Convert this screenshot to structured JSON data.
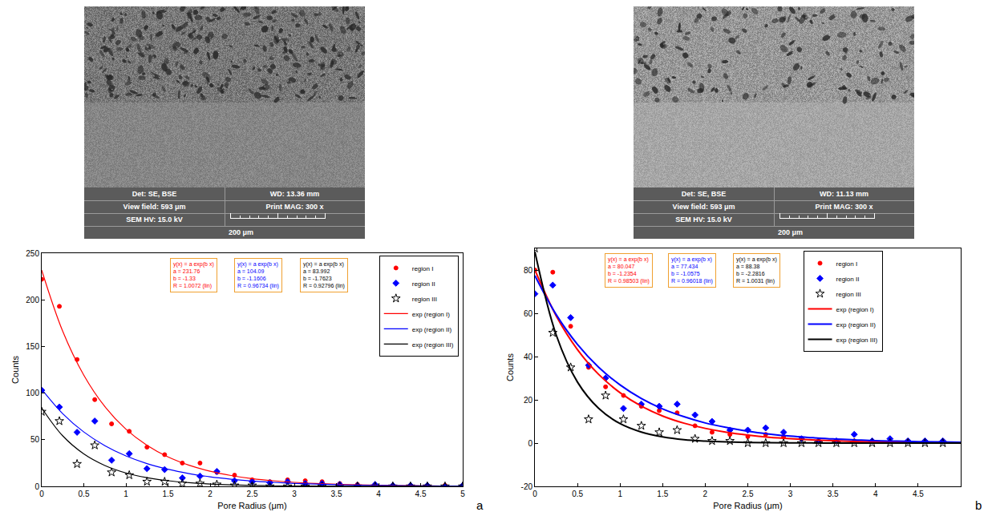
{
  "panel_labels": [
    "a",
    "b"
  ],
  "sem_images": [
    {
      "info": [
        [
          "Det: SE, BSE",
          "WD: 13.36 mm"
        ],
        [
          "View field: 593 μm",
          "Print MAG: 300 x"
        ],
        [
          "SEM HV: 15.0 kV"
        ]
      ],
      "scale_bar": "200 μm"
    },
    {
      "info": [
        [
          "Det: SE, BSE",
          "WD: 11.13 mm"
        ],
        [
          "View field: 593 μm",
          "Print MAG: 300 x"
        ],
        [
          "SEM HV: 15.0 kV"
        ]
      ],
      "scale_bar": "200 μm"
    }
  ],
  "chart_data": [
    {
      "type": "scatter",
      "x_label": "Pore Radius (μm)",
      "y_label": "Counts",
      "xlim": [
        0,
        5
      ],
      "xticks": [
        0,
        0.5,
        1,
        1.5,
        2,
        2.5,
        3,
        3.5,
        4,
        4.5,
        5
      ],
      "ylim": [
        0,
        250
      ],
      "yticks": [
        0,
        50,
        100,
        150,
        200,
        250
      ],
      "grid": false,
      "legend": "upper right",
      "annotations": [
        {
          "color": "#ff0000",
          "lines": [
            "y(x) = a exp(b x)",
            "a = 231.76",
            "b = -1.33",
            "R = 1.0072 (lin)"
          ]
        },
        {
          "color": "#0000ff",
          "lines": [
            "y(x) = a exp(b x)",
            "a = 104.09",
            "b = -1.1606",
            "R = 0.96734 (lin)"
          ]
        },
        {
          "color": "#000000",
          "lines": [
            "y(x) = a exp(b x)",
            "a = 83.992",
            "b = -1.7623",
            "R = 0.92796 (lin)"
          ]
        }
      ],
      "series": [
        {
          "name": "region I",
          "type": "scatter",
          "color": "#ff0000",
          "marker": "circle",
          "x": [
            0,
            0.21,
            0.42,
            0.63,
            0.83,
            1.04,
            1.25,
            1.46,
            1.67,
            1.88,
            2.08,
            2.29,
            2.5,
            2.71,
            2.92,
            3.13,
            3.33,
            3.54,
            3.75,
            3.96,
            4.17,
            4.38,
            4.58,
            4.79,
            5
          ],
          "values": [
            222,
            193,
            136,
            93,
            67,
            59,
            42,
            34,
            25,
            25,
            15,
            12,
            7,
            5,
            7,
            6,
            5,
            3,
            2,
            2,
            1,
            1,
            1,
            1,
            1
          ]
        },
        {
          "name": "region II",
          "type": "scatter",
          "color": "#0000ff",
          "marker": "diamond",
          "x": [
            0,
            0.21,
            0.42,
            0.63,
            0.83,
            1.04,
            1.25,
            1.46,
            1.67,
            1.88,
            2.08,
            2.29,
            2.5,
            2.71,
            2.92,
            3.13,
            3.33,
            3.54,
            3.75,
            3.96,
            4.17,
            4.38,
            4.58,
            4.79,
            5
          ],
          "values": [
            103,
            85,
            58,
            70,
            28,
            35,
            19,
            18,
            9,
            11,
            16,
            6,
            5,
            4,
            5,
            3,
            3,
            2,
            1,
            2,
            1,
            1,
            1,
            0,
            1
          ]
        },
        {
          "name": "region III",
          "type": "scatter",
          "color": "#000000",
          "marker": "star-open",
          "x": [
            0,
            0.21,
            0.42,
            0.63,
            0.83,
            1.04,
            1.25,
            1.46,
            1.67,
            1.88,
            2.08,
            2.29,
            2.5,
            2.71,
            2.92,
            3.13,
            3.33,
            3.54,
            3.75,
            3.96,
            4.17,
            4.38,
            4.58,
            4.79,
            5
          ],
          "values": [
            80,
            70,
            24,
            44,
            15,
            12,
            5,
            5,
            3,
            3,
            2,
            1,
            1,
            0,
            0,
            0,
            0,
            0,
            0,
            0,
            0,
            0,
            0,
            0,
            0
          ]
        },
        {
          "name": "exp (region I)",
          "type": "line",
          "color": "#ff0000",
          "line_style": "solid",
          "x": [
            0,
            0.25,
            0.5,
            0.75,
            1,
            1.25,
            1.5,
            1.75,
            2,
            2.25,
            2.5,
            2.75,
            3,
            3.25,
            3.5,
            3.75,
            4,
            4.25,
            4.5,
            4.75,
            5
          ],
          "values": [
            231.8,
            166.2,
            119.2,
            85.5,
            61.3,
            44.0,
            31.5,
            22.6,
            16.2,
            11.6,
            8.3,
            6.0,
            4.3,
            3.1,
            2.2,
            1.6,
            1.1,
            0.8,
            0.6,
            0.4,
            0.3
          ]
        },
        {
          "name": "exp (region II)",
          "type": "line",
          "color": "#0000ff",
          "line_style": "solid",
          "x": [
            0,
            0.25,
            0.5,
            0.75,
            1,
            1.25,
            1.5,
            1.75,
            2,
            2.25,
            2.5,
            2.75,
            3,
            3.25,
            3.5,
            3.75,
            4,
            4.25,
            4.5,
            4.75,
            5
          ],
          "values": [
            104.1,
            77.9,
            58.3,
            43.6,
            32.6,
            24.4,
            18.3,
            13.7,
            10.2,
            7.7,
            5.7,
            4.3,
            3.2,
            2.4,
            1.8,
            1.3,
            1.0,
            0.75,
            0.56,
            0.42,
            0.31
          ]
        },
        {
          "name": "exp (region III)",
          "type": "line",
          "color": "#000000",
          "line_style": "solid",
          "x": [
            0,
            0.25,
            0.5,
            0.75,
            1,
            1.25,
            1.5,
            1.75,
            2,
            2.25,
            2.5,
            2.75,
            3,
            3.25,
            3.5,
            3.75,
            4,
            4.25,
            4.5,
            4.75,
            5
          ],
          "values": [
            84.0,
            54.1,
            34.8,
            22.4,
            14.4,
            9.3,
            6.0,
            3.9,
            2.5,
            1.6,
            1.0,
            0.66,
            0.43,
            0.27,
            0.18,
            0.11,
            0.07,
            0.05,
            0.03,
            0.02,
            0.01
          ]
        }
      ]
    },
    {
      "type": "scatter",
      "x_label": "Pore Radius (μm)",
      "y_label": "Counts",
      "xlim": [
        0,
        5
      ],
      "xticks": [
        0,
        0.5,
        1,
        1.5,
        2,
        2.5,
        3,
        3.5,
        4,
        4.5
      ],
      "ylim": [
        -20,
        90
      ],
      "yticks": [
        -20,
        0,
        20,
        40,
        60,
        80
      ],
      "grid": false,
      "legend": "upper center",
      "annotations": [
        {
          "color": "#ff0000",
          "lines": [
            "y(x) = a exp(b x)",
            "a = 80.047",
            "b = -1.2354",
            "R = 0.98503 (lin)"
          ]
        },
        {
          "color": "#0000ff",
          "lines": [
            "y(x) = a exp(b x)",
            "a = 77.434",
            "b = -1.0575",
            "R = 0.96018 (lin)"
          ]
        },
        {
          "color": "#000000",
          "lines": [
            "y(x) = a exp(b x)",
            "a = 88.38",
            "b = -2.2816",
            "R = 1.0031 (lin)"
          ]
        }
      ],
      "series": [
        {
          "name": "region I",
          "type": "scatter",
          "color": "#ff0000",
          "marker": "circle",
          "x": [
            0,
            0.21,
            0.42,
            0.63,
            0.83,
            1.04,
            1.25,
            1.46,
            1.67,
            1.88,
            2.08,
            2.29,
            2.5,
            2.71,
            2.92,
            3.13,
            3.33,
            3.54,
            3.75,
            3.96,
            4.17,
            4.38,
            4.58,
            4.79
          ],
          "values": [
            80,
            79,
            54,
            35,
            26,
            22,
            17,
            15,
            14,
            8,
            5,
            4,
            3,
            4,
            3,
            2,
            1,
            1,
            1,
            1,
            1,
            1,
            1,
            1
          ]
        },
        {
          "name": "region II",
          "type": "scatter",
          "color": "#0000ff",
          "marker": "diamond",
          "x": [
            0,
            0.21,
            0.42,
            0.63,
            0.83,
            1.04,
            1.25,
            1.46,
            1.67,
            1.88,
            2.08,
            2.29,
            2.5,
            2.71,
            2.92,
            3.13,
            3.33,
            3.54,
            3.75,
            3.96,
            4.17,
            4.38,
            4.58,
            4.79
          ],
          "values": [
            69,
            73,
            58,
            36,
            30,
            16,
            18,
            17,
            18,
            13,
            10,
            6,
            6,
            7,
            5,
            2,
            1,
            1,
            4,
            1,
            2,
            1,
            1,
            1
          ]
        },
        {
          "name": "region III",
          "type": "scatter",
          "color": "#000000",
          "marker": "star-open",
          "x": [
            0,
            0.21,
            0.42,
            0.63,
            0.83,
            1.04,
            1.25,
            1.46,
            1.67,
            1.88,
            2.08,
            2.29,
            2.5,
            2.71,
            2.92,
            3.13,
            3.33,
            3.54,
            3.75,
            3.96,
            4.17,
            4.38,
            4.58,
            4.79
          ],
          "values": [
            90,
            51,
            35,
            11,
            22,
            11,
            8,
            5,
            6,
            2,
            1,
            1,
            0,
            0,
            0,
            0,
            0,
            0,
            0,
            0,
            0,
            0,
            0,
            0
          ]
        },
        {
          "name": "exp (region I)",
          "type": "line",
          "color": "#ff0000",
          "line_style": "solid",
          "x": [
            0,
            0.25,
            0.5,
            0.75,
            1,
            1.25,
            1.5,
            1.75,
            2,
            2.25,
            2.5,
            2.75,
            3,
            3.25,
            3.5,
            3.75,
            4,
            4.25,
            4.5,
            4.75,
            5
          ],
          "values": [
            80.0,
            58.8,
            43.2,
            31.7,
            23.3,
            17.1,
            12.5,
            9.2,
            6.8,
            5.0,
            3.7,
            2.7,
            2.0,
            1.45,
            1.07,
            0.78,
            0.57,
            0.42,
            0.31,
            0.23,
            0.17
          ]
        },
        {
          "name": "exp (region II)",
          "type": "line",
          "color": "#0000ff",
          "line_style": "solid",
          "x": [
            0,
            0.25,
            0.5,
            0.75,
            1,
            1.25,
            1.5,
            1.75,
            2,
            2.25,
            2.5,
            2.75,
            3,
            3.25,
            3.5,
            3.75,
            4,
            4.25,
            4.5,
            4.75,
            5
          ],
          "values": [
            77.4,
            59.4,
            45.6,
            35.0,
            26.9,
            20.6,
            15.8,
            12.2,
            9.3,
            7.2,
            5.5,
            4.2,
            3.2,
            2.5,
            1.9,
            1.5,
            1.1,
            0.9,
            0.67,
            0.52,
            0.4
          ]
        },
        {
          "name": "exp (region III)",
          "type": "line",
          "color": "#000000",
          "line_style": "solid",
          "x": [
            0,
            0.25,
            0.5,
            0.75,
            1,
            1.25,
            1.5,
            1.75,
            2,
            2.25,
            2.5,
            2.75,
            3,
            3.25,
            3.5,
            3.75,
            4,
            4.25,
            4.5,
            4.75,
            5
          ],
          "values": [
            88.4,
            50.0,
            28.2,
            16.0,
            9.0,
            5.1,
            2.9,
            1.6,
            0.92,
            0.52,
            0.29,
            0.17,
            0.09,
            0.05,
            0.03,
            0.02,
            0.01,
            0.01,
            0,
            0,
            0
          ]
        }
      ]
    }
  ]
}
